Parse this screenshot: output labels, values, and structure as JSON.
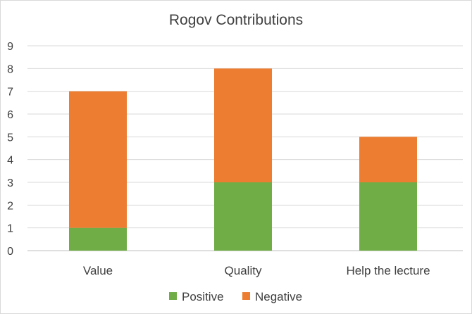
{
  "chart_data": {
    "type": "bar",
    "stacked": true,
    "title": "Rogov Contributions",
    "xlabel": "",
    "ylabel": "",
    "categories": [
      "Value",
      "Quality",
      "Help the lecture"
    ],
    "series": [
      {
        "name": "Positive",
        "values": [
          1,
          3,
          3
        ],
        "color": "#70ad47"
      },
      {
        "name": "Negative",
        "values": [
          6,
          5,
          2
        ],
        "color": "#ed7d31"
      }
    ],
    "ylim": [
      0,
      9
    ],
    "yticks": [
      "0",
      "1",
      "2",
      "3",
      "4",
      "5",
      "6",
      "7",
      "8",
      "9"
    ],
    "grid": true,
    "legend_position": "bottom"
  }
}
